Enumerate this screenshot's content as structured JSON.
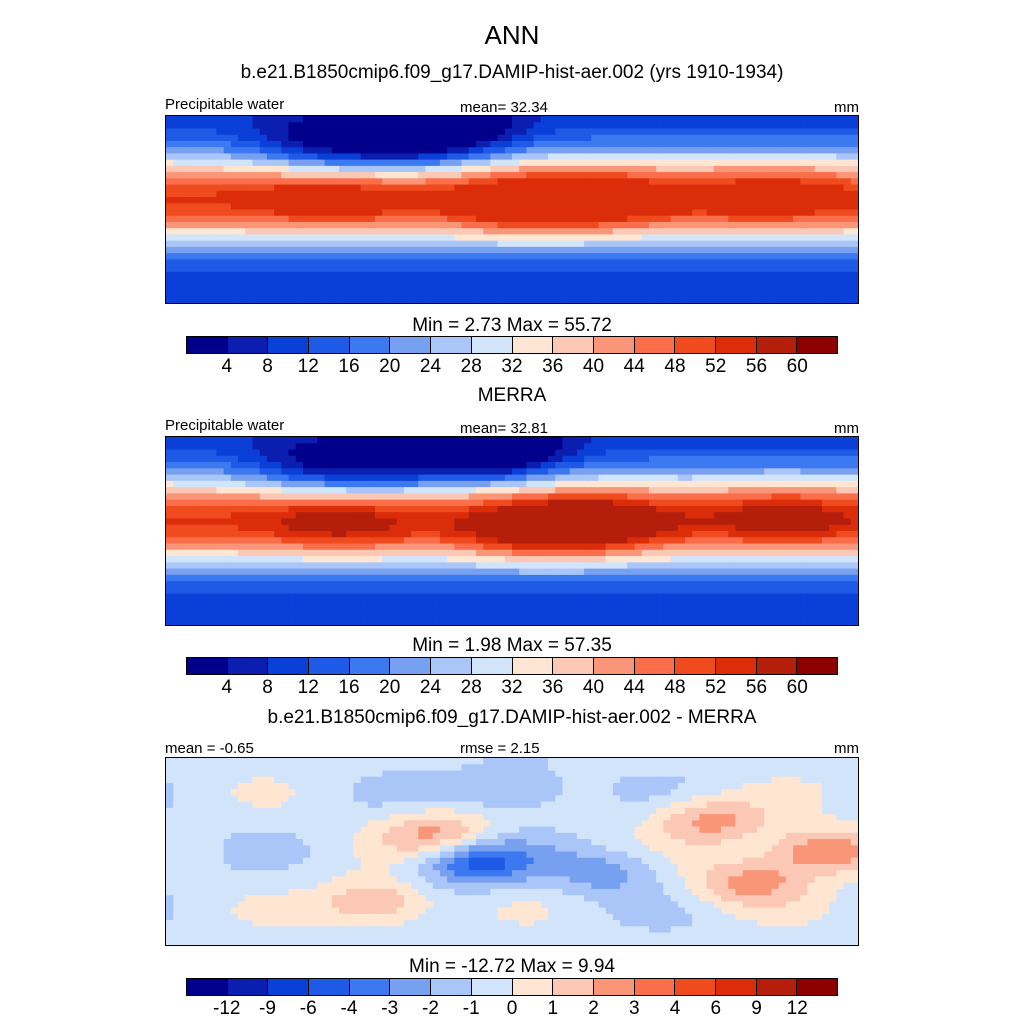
{
  "title": "ANN",
  "subtitle": "b.e21.B1850cmip6.f09_g17.DAMIP-hist-aer.002 (yrs 1910-1934)",
  "colors": {
    "abs": [
      "#00008c",
      "#0a1fb0",
      "#0a3fd8",
      "#1e5ae6",
      "#3c78f0",
      "#78a0f0",
      "#aac6f8",
      "#d2e4fa",
      "#fee6d2",
      "#fac8b4",
      "#fa9678",
      "#fa6e4b",
      "#f04b1e",
      "#dc2d0a",
      "#b41e0a",
      "#8c0000"
    ],
    "diff": [
      "#00008c",
      "#0a1fb0",
      "#0a3fd8",
      "#1e5ae6",
      "#3c78f0",
      "#78a0f0",
      "#aac6f8",
      "#d2e4fa",
      "#fee6d2",
      "#fac8b4",
      "#fa9678",
      "#fa6e4b",
      "#f04b1e",
      "#dc2d0a",
      "#b41e0a",
      "#8c0000"
    ],
    "land": "#1a1a1a"
  },
  "chart_data": [
    {
      "type": "heatmap",
      "title": "",
      "left_label": "Precipitable water",
      "center_label": "mean=  32.34",
      "units": "mm",
      "stats": "Min =   2.73 Max =  55.72",
      "colorbar_ticks": [
        "4",
        "8",
        "12",
        "16",
        "20",
        "24",
        "28",
        "32",
        "36",
        "40",
        "44",
        "48",
        "52",
        "56",
        "60"
      ],
      "scale": "abs",
      "field": {
        "mean": 32.34,
        "min": 2.73,
        "max": 55.72,
        "lon_range": [
          -90,
          290
        ],
        "lat_range": [
          -45,
          45
        ],
        "features": [
          {
            "lon": 110,
            "lat": 2,
            "amp": 14
          },
          {
            "lon": 150,
            "lat": 6,
            "amp": 10
          },
          {
            "lon": 0,
            "lat": 6,
            "amp": 8
          },
          {
            "lon": 240,
            "lat": 8,
            "amp": 8
          },
          {
            "lon": 60,
            "lat": 38,
            "amp": -22
          },
          {
            "lon": 30,
            "lat": 28,
            "amp": -12
          },
          {
            "lon": -10,
            "lat": 30,
            "amp": -12
          }
        ]
      }
    },
    {
      "type": "heatmap",
      "title": "MERRA",
      "left_label": "Precipitable water",
      "center_label": "mean=  32.81",
      "units": "mm",
      "stats": "Min =   1.98 Max =  57.35",
      "colorbar_ticks": [
        "4",
        "8",
        "12",
        "16",
        "20",
        "24",
        "28",
        "32",
        "36",
        "40",
        "44",
        "48",
        "52",
        "56",
        "60"
      ],
      "scale": "abs",
      "field": {
        "mean": 32.81,
        "min": 1.98,
        "max": 57.35,
        "lon_range": [
          -90,
          290
        ],
        "lat_range": [
          -45,
          45
        ],
        "features": [
          {
            "lon": 115,
            "lat": 0,
            "amp": 16
          },
          {
            "lon": 150,
            "lat": 4,
            "amp": 12
          },
          {
            "lon": 5,
            "lat": 4,
            "amp": 9
          },
          {
            "lon": 250,
            "lat": 8,
            "amp": 9
          },
          {
            "lon": 85,
            "lat": 38,
            "amp": -26
          },
          {
            "lon": 30,
            "lat": 28,
            "amp": -12
          },
          {
            "lon": -10,
            "lat": 30,
            "amp": -12
          }
        ]
      }
    },
    {
      "type": "heatmap",
      "title": "b.e21.B1850cmip6.f09_g17.DAMIP-hist-aer.002 - MERRA",
      "left_label": "mean =  -0.65",
      "center_label": "rmse =   2.15",
      "units": "mm",
      "stats": "Min = -12.72 Max =   9.94",
      "colorbar_ticks": [
        "-12",
        "-9",
        "-6",
        "-4",
        "-3",
        "-2",
        "-1",
        "0",
        "1",
        "2",
        "3",
        "4",
        "6",
        "9",
        "12"
      ],
      "scale": "diff",
      "field": {
        "mean": -0.65,
        "rmse": 2.15,
        "min": -12.72,
        "max": 9.94,
        "lon_range": [
          -90,
          290
        ],
        "lat_range": [
          -45,
          45
        ],
        "features": [
          {
            "lon": 80,
            "lat": -5,
            "amp": -4
          },
          {
            "lon": 60,
            "lat": 8,
            "amp": 3
          },
          {
            "lon": 25,
            "lat": -25,
            "amp": 3
          },
          {
            "lon": 210,
            "lat": 15,
            "amp": 3
          },
          {
            "lon": 230,
            "lat": -15,
            "amp": 3
          },
          {
            "lon": 150,
            "lat": -10,
            "amp": -2
          },
          {
            "lon": 100,
            "lat": 30,
            "amp": -2
          },
          {
            "lon": 270,
            "lat": 0,
            "amp": 4
          }
        ]
      }
    }
  ]
}
